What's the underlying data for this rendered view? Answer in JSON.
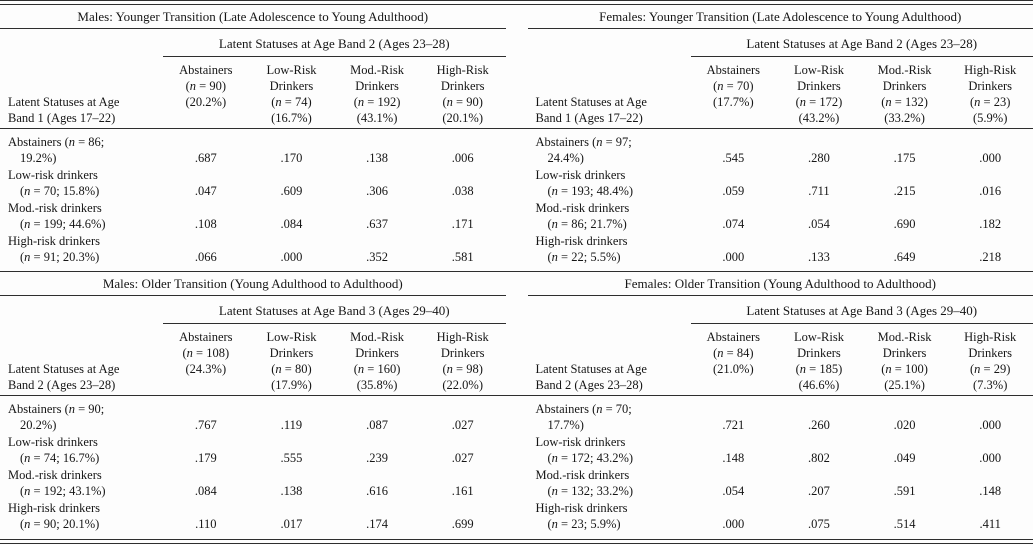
{
  "page": {
    "background": "#fdfdfd",
    "text_color": "#161616",
    "rule_color": "#2e2e2e",
    "description": "Latent transition probability tables for males and females across younger and older transitions"
  },
  "tables": [
    {
      "id": "males-younger",
      "title": "Males: Younger Transition (Late Adolescence to Young Adulthood)",
      "spanner": "Latent Statuses at Age Band 2 (Ages 23–28)",
      "stub_header": "Latent Statuses at Age\nBand 1 (Ages 17–22)",
      "columns": [
        "Abstainers\n(n = 90)\n(20.2%)",
        "Low-Risk\nDrinkers\n(n = 74)\n(16.7%)",
        "Mod.-Risk\nDrinkers\n(n = 192)\n(43.1%)",
        "High-Risk\nDrinkers\n(n = 90)\n(20.1%)"
      ],
      "rows": [
        {
          "label1": "Abstainers (n = 86;",
          "label2": "19.2%)",
          "values": [
            ".687",
            ".170",
            ".138",
            ".006"
          ]
        },
        {
          "label1": "Low-risk drinkers",
          "label2": "(n = 70; 15.8%)",
          "values": [
            ".047",
            ".609",
            ".306",
            ".038"
          ]
        },
        {
          "label1": "Mod.-risk drinkers",
          "label2": "(n = 199; 44.6%)",
          "values": [
            ".108",
            ".084",
            ".637",
            ".171"
          ]
        },
        {
          "label1": "High-risk drinkers",
          "label2": "(n = 91; 20.3%)",
          "values": [
            ".066",
            ".000",
            ".352",
            ".581"
          ]
        }
      ]
    },
    {
      "id": "females-younger",
      "title": "Females: Younger Transition (Late Adolescence to Young Adulthood)",
      "spanner": "Latent Statuses at Age Band 2 (Ages 23–28)",
      "stub_header": "Latent Statuses at Age\nBand 1 (Ages 17–22)",
      "columns": [
        "Abstainers\n(n = 70)\n(17.7%)",
        "Low-Risk\nDrinkers\n(n = 172)\n(43.2%)",
        "Mod.-Risk\nDrinkers\n(n = 132)\n(33.2%)",
        "High-Risk\nDrinkers\n(n = 23)\n(5.9%)"
      ],
      "rows": [
        {
          "label1": "Abstainers (n = 97;",
          "label2": "24.4%)",
          "values": [
            ".545",
            ".280",
            ".175",
            ".000"
          ]
        },
        {
          "label1": "Low-risk drinkers",
          "label2": "(n = 193; 48.4%)",
          "values": [
            ".059",
            ".711",
            ".215",
            ".016"
          ]
        },
        {
          "label1": "Mod.-risk drinkers",
          "label2": "(n = 86; 21.7%)",
          "values": [
            ".074",
            ".054",
            ".690",
            ".182"
          ]
        },
        {
          "label1": "High-risk drinkers",
          "label2": "(n = 22; 5.5%)",
          "values": [
            ".000",
            ".133",
            ".649",
            ".218"
          ]
        }
      ]
    },
    {
      "id": "males-older",
      "title": "Males: Older Transition (Young Adulthood to Adulthood)",
      "spanner": "Latent Statuses at Age Band 3 (Ages 29–40)",
      "stub_header": "Latent Statuses at Age\nBand 2 (Ages 23–28)",
      "columns": [
        "Abstainers\n(n = 108)\n(24.3%)",
        "Low-Risk\nDrinkers\n(n = 80)\n(17.9%)",
        "Mod.-Risk\nDrinkers\n(n = 160)\n(35.8%)",
        "High-Risk\nDrinkers\n(n = 98)\n(22.0%)"
      ],
      "rows": [
        {
          "label1": "Abstainers (n = 90;",
          "label2": "20.2%)",
          "values": [
            ".767",
            ".119",
            ".087",
            ".027"
          ]
        },
        {
          "label1": "Low-risk drinkers",
          "label2": "(n = 74; 16.7%)",
          "values": [
            ".179",
            ".555",
            ".239",
            ".027"
          ]
        },
        {
          "label1": "Mod.-risk drinkers",
          "label2": "(n = 192; 43.1%)",
          "values": [
            ".084",
            ".138",
            ".616",
            ".161"
          ]
        },
        {
          "label1": "High-risk drinkers",
          "label2": "(n = 90; 20.1%)",
          "values": [
            ".110",
            ".017",
            ".174",
            ".699"
          ]
        }
      ]
    },
    {
      "id": "females-older",
      "title": "Females: Older Transition (Young Adulthood to Adulthood)",
      "spanner": "Latent Statuses at Age Band 3 (Ages 29–40)",
      "stub_header": "Latent Statuses at Age\nBand 2 (Ages 23–28)",
      "columns": [
        "Abstainers\n(n = 84)\n(21.0%)",
        "Low-Risk\nDrinkers\n(n = 185)\n(46.6%)",
        "Mod.-Risk\nDrinkers\n(n = 100)\n(25.1%)",
        "High-Risk\nDrinkers\n(n = 29)\n(7.3%)"
      ],
      "rows": [
        {
          "label1": "Abstainers (n = 70;",
          "label2": "17.7%)",
          "values": [
            ".721",
            ".260",
            ".020",
            ".000"
          ]
        },
        {
          "label1": "Low-risk drinkers",
          "label2": "(n = 172; 43.2%)",
          "values": [
            ".148",
            ".802",
            ".049",
            ".000"
          ]
        },
        {
          "label1": "Mod.-risk drinkers",
          "label2": "(n = 132; 33.2%)",
          "values": [
            ".054",
            ".207",
            ".591",
            ".148"
          ]
        },
        {
          "label1": "High-risk drinkers",
          "label2": "(n = 23; 5.9%)",
          "values": [
            ".000",
            ".075",
            ".514",
            ".411"
          ]
        }
      ]
    }
  ]
}
